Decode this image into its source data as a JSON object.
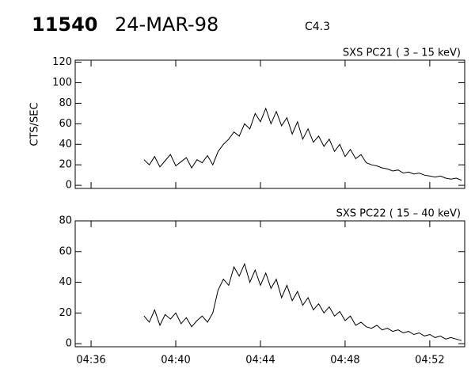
{
  "header": {
    "id": "11540",
    "date": "24-MAR-98",
    "class": "C4.3"
  },
  "chart_data": [
    {
      "type": "line",
      "title": "SXS PC21  (  3 – 15 keV)",
      "ylabel": "CTS/SEC",
      "color": "#000000",
      "xlim": [
        35.25,
        53.65
      ],
      "xticks": [
        36,
        40,
        44,
        48,
        52
      ],
      "ylim": [
        -3,
        122
      ],
      "yticks": [
        0,
        20,
        40,
        60,
        80,
        100,
        120
      ],
      "x": [
        38.5,
        38.75,
        39,
        39.25,
        39.5,
        39.75,
        40,
        40.25,
        40.5,
        40.75,
        41,
        41.25,
        41.5,
        41.75,
        42,
        42.25,
        42.5,
        42.75,
        43,
        43.25,
        43.5,
        43.75,
        44,
        44.25,
        44.5,
        44.75,
        45,
        45.25,
        45.5,
        45.75,
        46,
        46.25,
        46.5,
        46.75,
        47,
        47.25,
        47.5,
        47.75,
        48,
        48.25,
        48.5,
        48.75,
        49,
        49.25,
        49.5,
        49.75,
        50,
        50.25,
        50.5,
        50.75,
        51,
        51.25,
        51.5,
        51.75,
        52,
        52.25,
        52.5,
        52.75,
        53,
        53.25,
        53.5
      ],
      "values": [
        25,
        20,
        28,
        18,
        24,
        30,
        19,
        23,
        27,
        17,
        25,
        22,
        29,
        20,
        33,
        40,
        45,
        52,
        48,
        60,
        55,
        70,
        62,
        75,
        60,
        72,
        58,
        66,
        50,
        62,
        45,
        55,
        42,
        48,
        38,
        45,
        33,
        40,
        28,
        35,
        26,
        30,
        22,
        20,
        19,
        17,
        16,
        14,
        15,
        12,
        13,
        11,
        12,
        10,
        9,
        8,
        9,
        7,
        6,
        7,
        5
      ]
    },
    {
      "type": "line",
      "title": "SXS PC22  ( 15 – 40 keV)",
      "color": "#000000",
      "xlim": [
        35.25,
        53.65
      ],
      "xticks": [
        {
          "value": 36,
          "label": "04:36"
        },
        {
          "value": 40,
          "label": "04:40"
        },
        {
          "value": 44,
          "label": "04:44"
        },
        {
          "value": 48,
          "label": "04:48"
        },
        {
          "value": 52,
          "label": "04:52"
        }
      ],
      "ylim": [
        -2,
        80
      ],
      "yticks": [
        0,
        20,
        40,
        60,
        80
      ],
      "x": [
        38.5,
        38.75,
        39,
        39.25,
        39.5,
        39.75,
        40,
        40.25,
        40.5,
        40.75,
        41,
        41.25,
        41.5,
        41.75,
        42,
        42.25,
        42.5,
        42.75,
        43,
        43.25,
        43.5,
        43.75,
        44,
        44.25,
        44.5,
        44.75,
        45,
        45.25,
        45.5,
        45.75,
        46,
        46.25,
        46.5,
        46.75,
        47,
        47.25,
        47.5,
        47.75,
        48,
        48.25,
        48.5,
        48.75,
        49,
        49.25,
        49.5,
        49.75,
        50,
        50.25,
        50.5,
        50.75,
        51,
        51.25,
        51.5,
        51.75,
        52,
        52.25,
        52.5,
        52.75,
        53,
        53.25,
        53.5
      ],
      "values": [
        18,
        14,
        22,
        12,
        19,
        16,
        20,
        13,
        17,
        11,
        15,
        18,
        14,
        20,
        35,
        42,
        38,
        50,
        44,
        52,
        40,
        48,
        38,
        46,
        36,
        42,
        30,
        38,
        28,
        34,
        25,
        30,
        22,
        26,
        20,
        24,
        18,
        21,
        15,
        18,
        12,
        14,
        11,
        10,
        12,
        9,
        10,
        8,
        9,
        7,
        8,
        6,
        7,
        5,
        6,
        4,
        5,
        3,
        4,
        3,
        2
      ]
    }
  ]
}
